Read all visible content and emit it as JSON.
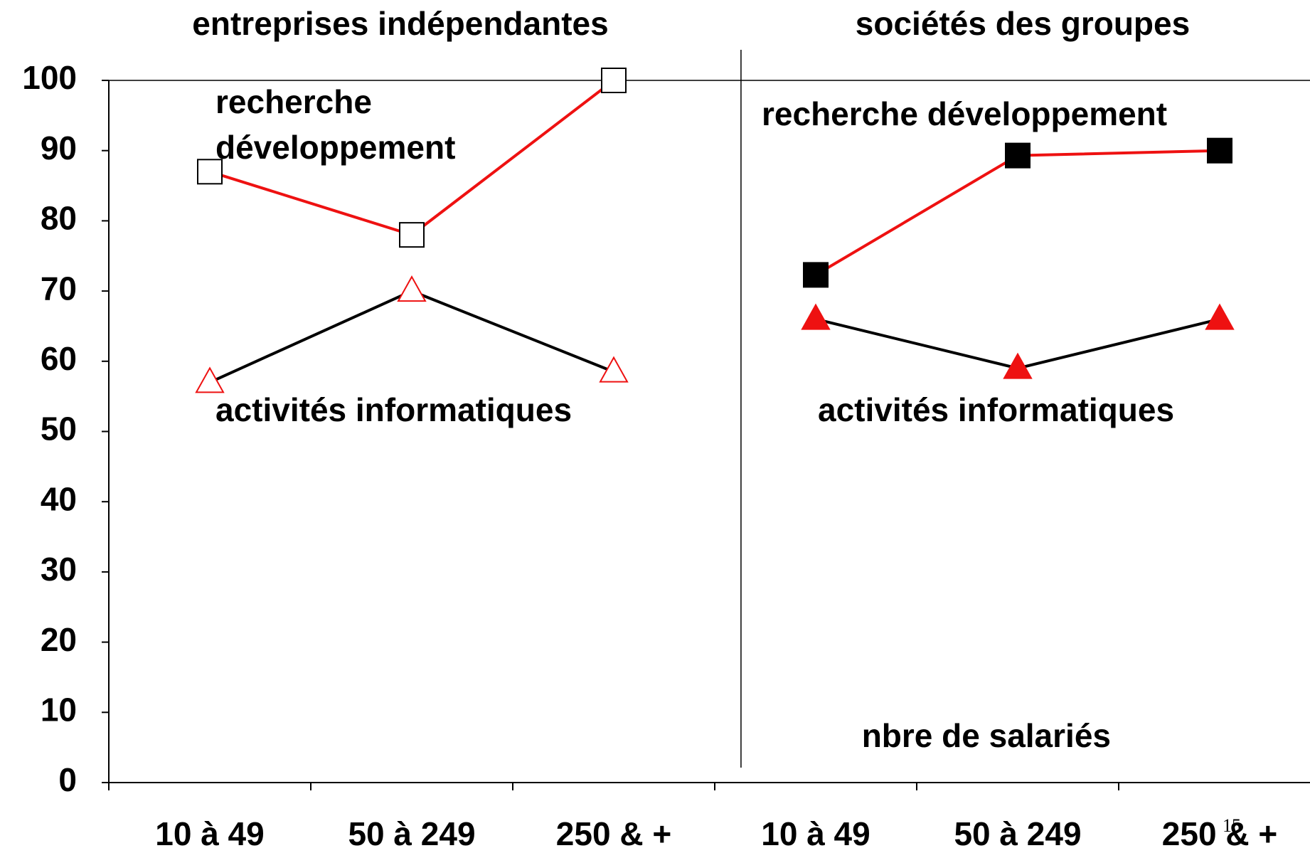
{
  "chart_data": {
    "type": "line",
    "ylim": [
      0,
      100
    ],
    "yticks": [
      0,
      10,
      20,
      30,
      40,
      50,
      60,
      70,
      80,
      90,
      100
    ],
    "x_label": "nbre de salariés",
    "page_number": "15",
    "panels": [
      {
        "title": "entreprises indépendantes",
        "categories": [
          "10 à 49",
          "50 à 249",
          "250 & +"
        ],
        "series": [
          {
            "name": "recherche développement",
            "color": "#ee1111",
            "marker": "square",
            "marker_fill": "#ffffff",
            "marker_stroke": "#000000",
            "values": [
              87,
              78,
              100
            ]
          },
          {
            "name": "activités informatiques",
            "color": "#000000",
            "marker": "triangle",
            "marker_fill": "#ffffff",
            "marker_stroke": "#ee1111",
            "values": [
              57,
              70,
              58.5
            ]
          }
        ]
      },
      {
        "title": "sociétés des groupes",
        "categories": [
          "10 à 49",
          "50 à 249",
          "250 & +"
        ],
        "series": [
          {
            "name": "recherche développement",
            "color": "#ee1111",
            "marker": "square",
            "marker_fill": "#000000",
            "marker_stroke": "#000000",
            "values": [
              72.3,
              89.3,
              90
            ]
          },
          {
            "name": "activités informatiques",
            "color": "#000000",
            "marker": "triangle",
            "marker_fill": "#ee1111",
            "marker_stroke": "#ee1111",
            "values": [
              66,
              59,
              66
            ]
          }
        ]
      }
    ]
  }
}
